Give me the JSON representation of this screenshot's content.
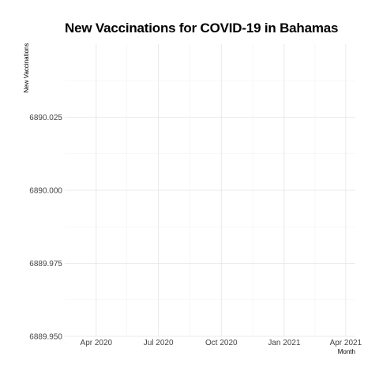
{
  "chart_data": {
    "type": "line",
    "title": "New Vaccinations for COVID-19 in Bahamas",
    "xlabel": "Month",
    "ylabel": "New Vaccinations",
    "x_ticks": [
      "Apr 2020",
      "Jul 2020",
      "Oct 2020",
      "Jan 2021",
      "Apr 2021"
    ],
    "x_tick_dates": [
      "2020-04-01",
      "2020-07-01",
      "2020-10-01",
      "2021-01-01",
      "2021-04-01"
    ],
    "x_range": [
      "2020-02-15",
      "2021-04-15"
    ],
    "y_ticks": [
      "6889.950",
      "6889.975",
      "6890.000",
      "6890.025"
    ],
    "y_tick_values": [
      6889.95,
      6889.975,
      6890.0,
      6890.025
    ],
    "ylim": [
      6889.95,
      6890.05
    ],
    "grid": true,
    "series": []
  }
}
